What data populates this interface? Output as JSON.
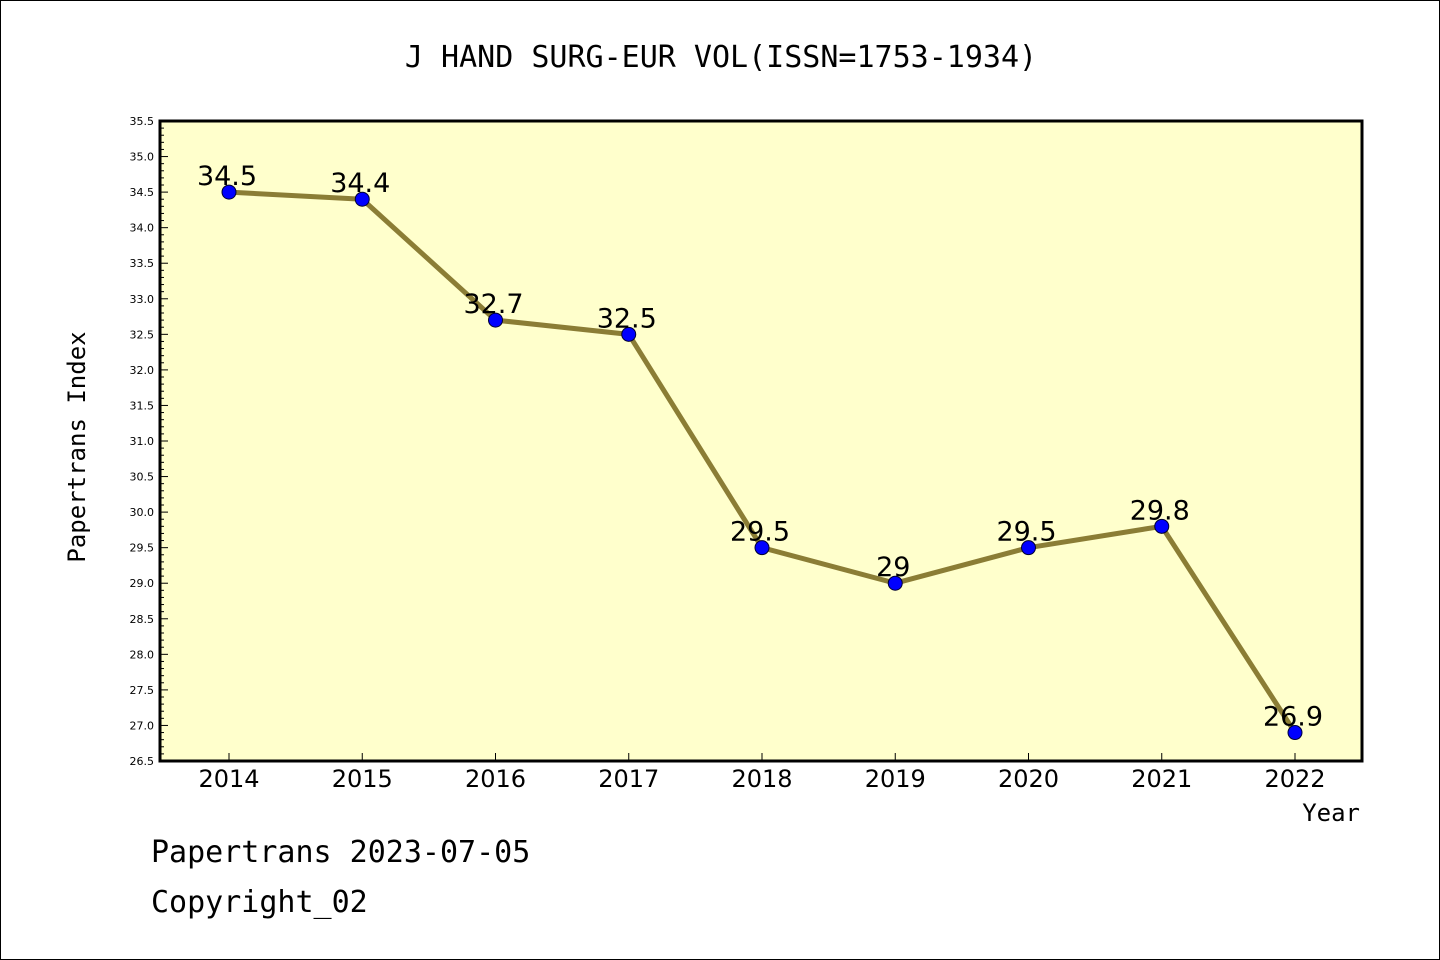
{
  "chart_data": {
    "type": "line",
    "title": "J HAND SURG-EUR VOL(ISSN=1753-1934)",
    "xlabel": "Year",
    "ylabel": "Papertrans Index",
    "categories": [
      "2014",
      "2015",
      "2016",
      "2017",
      "2018",
      "2019",
      "2020",
      "2021",
      "2022"
    ],
    "series": [
      {
        "values": [
          34.5,
          34.4,
          32.7,
          32.5,
          29.5,
          29.0,
          29.5,
          29.8,
          26.9
        ],
        "labels": [
          "34.5",
          "34.4",
          "32.7",
          "32.5",
          "29.5",
          "29",
          "29.5",
          "29.8",
          "26.9"
        ]
      }
    ],
    "ylim": [
      26.5,
      35.5
    ],
    "yticks": [
      "26.5",
      "27.0",
      "27.5",
      "28.0",
      "28.5",
      "29.0",
      "29.5",
      "30.0",
      "30.5",
      "31.0",
      "31.5",
      "32.0",
      "32.5",
      "33.0",
      "33.5",
      "34.0",
      "34.5",
      "35.0",
      "35.5"
    ],
    "grid": false,
    "colors": {
      "plot_background": "#ffffcc",
      "line": "#8b7d35",
      "marker": "#0000ff"
    }
  },
  "footer": {
    "line1": "Papertrans 2023-07-05",
    "line2": "Copyright_02"
  }
}
